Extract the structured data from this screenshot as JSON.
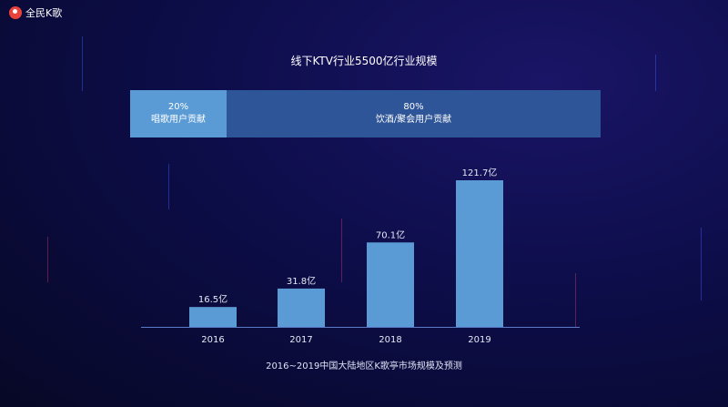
{
  "logo": {
    "text": "全民K歌",
    "icon": "karaoke-logo-icon"
  },
  "title": "线下KTV行业5500亿行业规模",
  "share": [
    {
      "percent": "20%",
      "label": "唱歌用户贡献",
      "color": "#5b9bd5"
    },
    {
      "percent": "80%",
      "label": "饮酒/聚会用户贡献",
      "color": "#2e5597"
    }
  ],
  "chart_data": {
    "type": "bar",
    "categories": [
      "2016",
      "2017",
      "2018",
      "2019"
    ],
    "values": [
      16.5,
      31.8,
      70.1,
      121.7
    ],
    "data_labels": [
      "16.5亿",
      "31.8亿",
      "70.1亿",
      "121.7亿"
    ],
    "title": "",
    "xlabel": "2016~2019中国大陆地区K歌亭市场规模及预测",
    "ylabel": "",
    "ylim": [
      0,
      125
    ],
    "grid": false,
    "bar_color": "#5b9bd5"
  }
}
